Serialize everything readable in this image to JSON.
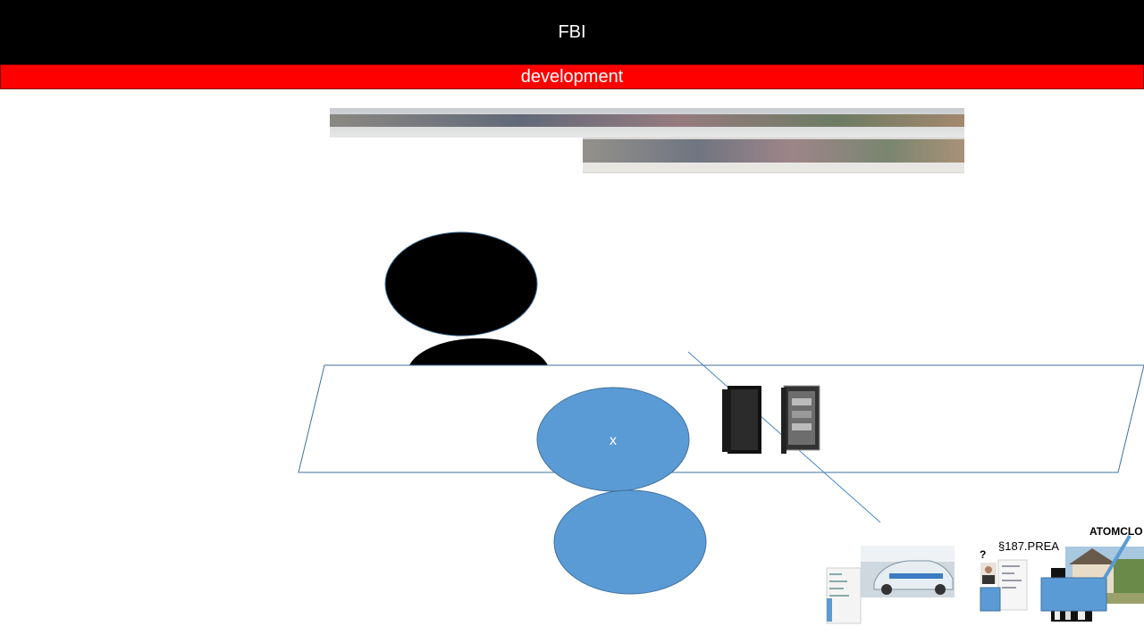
{
  "slide": {
    "title": "FBI",
    "subtitle": "development",
    "center_node_label": "x",
    "paragraph_label": "§187.PREA",
    "question_label": "?",
    "clock_label": "ATOMCLO"
  },
  "colors": {
    "title_bg": "#000000",
    "subtitle_bg": "#ff0000",
    "node_fill": "#5b9bd5",
    "node_stroke": "#41719c",
    "black_node": "#000000",
    "line": "#4a86c5"
  },
  "icons": [
    "panorama-wall-photo",
    "server-rack-icon",
    "police-car-photo",
    "document-thumbnail",
    "person-thumbnail",
    "house-photo"
  ]
}
